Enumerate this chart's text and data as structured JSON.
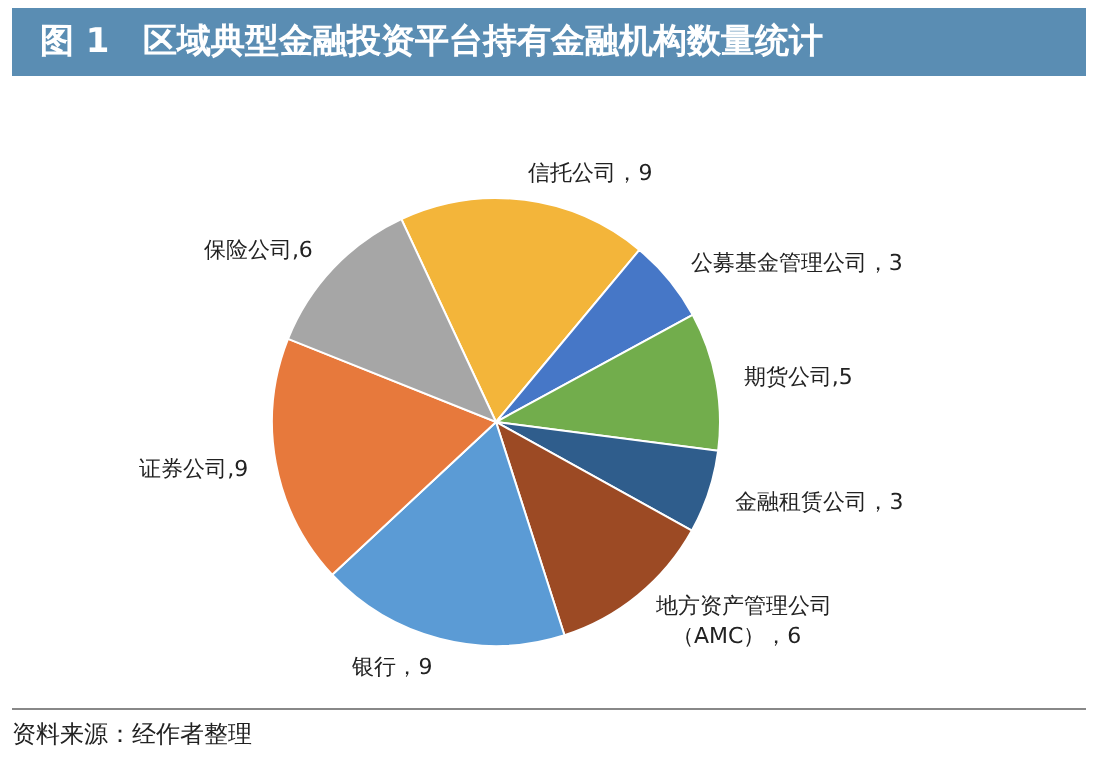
{
  "chart_data": {
    "type": "pie",
    "title": "图 1　区域典型金融投资平台持有金融机构数量统计",
    "categories": [
      "信托公司",
      "公募基金管理公司",
      "期货公司",
      "金融租赁公司",
      "地方资产管理公司（AMC）",
      "银行",
      "证券公司",
      "保险公司"
    ],
    "values": [
      9,
      3,
      5,
      3,
      6,
      9,
      9,
      6
    ],
    "colors": [
      "#f3b53a",
      "#4677c7",
      "#72ad4c",
      "#2f5d8c",
      "#9c4a24",
      "#5b9bd5",
      "#e7793c",
      "#a6a6a6"
    ],
    "value_labels": [
      "，9",
      "，3",
      ",5",
      "，3",
      "，6",
      "，9",
      ",9",
      ",6"
    ],
    "annotations": [
      "资料来源：经作者整理"
    ]
  }
}
